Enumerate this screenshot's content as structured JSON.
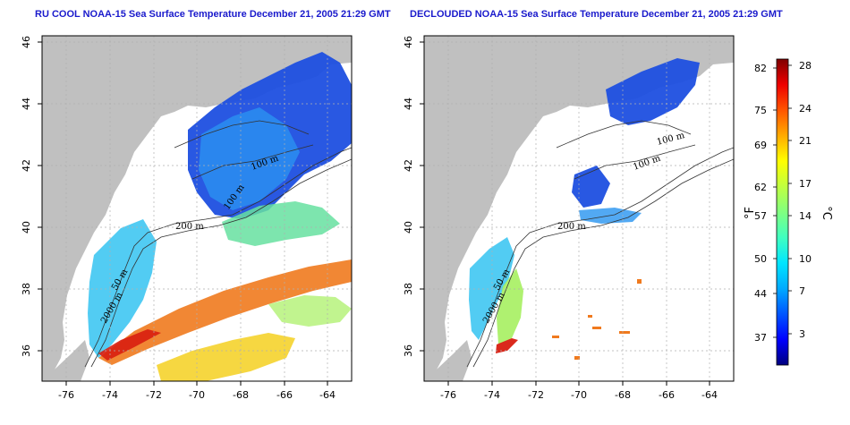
{
  "panels": [
    {
      "title": "RU COOL NOAA-15 Sea Surface Temperature December 21, 2005 21:29 GMT",
      "contour_labels": [
        "200 m",
        "100 m",
        "100 m",
        "50 m",
        "2000 m"
      ]
    },
    {
      "title": "DECLOUDED NOAA-15 Sea Surface Temperature December 21, 2005 21:29 GMT",
      "contour_labels": [
        "200 m",
        "100 m",
        "100 m",
        "50 m",
        "2000 m"
      ]
    }
  ],
  "map_axes": {
    "x_ticks": [
      "-76",
      "-74",
      "-72",
      "-70",
      "-68",
      "-66",
      "-64"
    ],
    "y_ticks": [
      "46",
      "44",
      "42",
      "40",
      "38",
      "36"
    ]
  },
  "colorbar": {
    "f_label": "°F",
    "c_label": "°C",
    "f_ticks": [
      "82",
      "75",
      "69",
      "62",
      "57",
      "50",
      "44",
      "37"
    ],
    "c_ticks": [
      "28",
      "24",
      "21",
      "17",
      "14",
      "10",
      "7",
      "3"
    ],
    "colors": [
      "#00007f",
      "#0000ff",
      "#0055ff",
      "#00aaff",
      "#00e5ff",
      "#40ffc0",
      "#80ff80",
      "#c0ff40",
      "#ffff00",
      "#ffaa00",
      "#ff5500",
      "#ee0000",
      "#7f0000"
    ]
  },
  "colors": {
    "land": "#c0c0c0",
    "water_nodata": "#ffffff",
    "title": "#1a1acc",
    "grid": "#b0b0b0"
  }
}
